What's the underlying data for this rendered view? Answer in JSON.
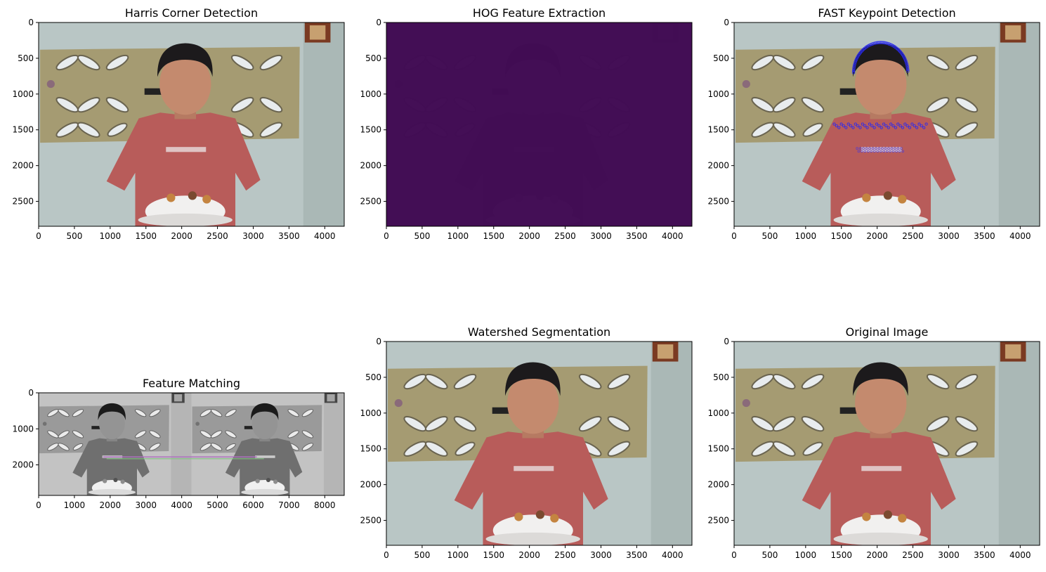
{
  "chart_data": [
    {
      "type": "image",
      "title": "Harris Corner Detection",
      "style": "photo",
      "xlim": [
        0,
        4272
      ],
      "ylim": [
        2848,
        0
      ],
      "xticks": [
        0,
        500,
        1000,
        1500,
        2000,
        2500,
        3000,
        3500,
        4000
      ],
      "yticks": [
        0,
        500,
        1000,
        1500,
        2000,
        2500
      ]
    },
    {
      "type": "image",
      "title": "HOG Feature Extraction",
      "style": "hog",
      "xlim": [
        0,
        4272
      ],
      "ylim": [
        2848,
        0
      ],
      "xticks": [
        0,
        500,
        1000,
        1500,
        2000,
        2500,
        3000,
        3500,
        4000
      ],
      "yticks": [
        0,
        500,
        1000,
        1500,
        2000,
        2500
      ]
    },
    {
      "type": "image",
      "title": "FAST Keypoint Detection",
      "style": "keypoints",
      "xlim": [
        0,
        4272
      ],
      "ylim": [
        2848,
        0
      ],
      "xticks": [
        0,
        500,
        1000,
        1500,
        2000,
        2500,
        3000,
        3500,
        4000
      ],
      "yticks": [
        0,
        500,
        1000,
        1500,
        2000,
        2500
      ]
    },
    {
      "type": "image",
      "title": "Feature Matching",
      "style": "matching",
      "xlim": [
        0,
        8544
      ],
      "ylim": [
        2848,
        0
      ],
      "xticks": [
        0,
        1000,
        2000,
        3000,
        4000,
        5000,
        6000,
        7000,
        8000
      ],
      "yticks": [
        0,
        1000,
        2000
      ]
    },
    {
      "type": "image",
      "title": "Watershed Segmentation",
      "style": "photo",
      "xlim": [
        0,
        4272
      ],
      "ylim": [
        2848,
        0
      ],
      "xticks": [
        0,
        500,
        1000,
        1500,
        2000,
        2500,
        3000,
        3500,
        4000
      ],
      "yticks": [
        0,
        500,
        1000,
        1500,
        2000,
        2500
      ]
    },
    {
      "type": "image",
      "title": "Original Image",
      "style": "photo",
      "xlim": [
        0,
        4272
      ],
      "ylim": [
        2848,
        0
      ],
      "xticks": [
        0,
        500,
        1000,
        1500,
        2000,
        2500,
        3000,
        3500,
        4000
      ],
      "yticks": [
        0,
        500,
        1000,
        1500,
        2000,
        2500
      ]
    }
  ]
}
